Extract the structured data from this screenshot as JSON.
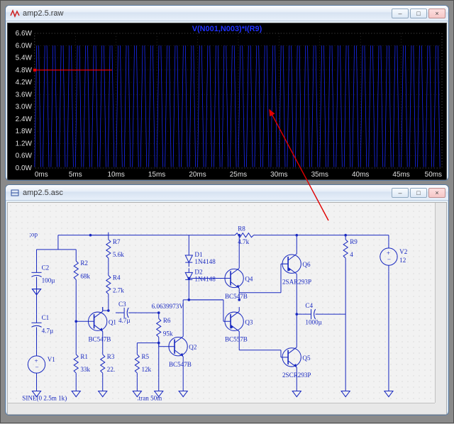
{
  "plot_window": {
    "title": "amp2.5.raw",
    "trace_label": "V(N001,N003)*I(R9)",
    "trace_label_color": "#2030ff",
    "y_axis": {
      "ticks": [
        "6.6W",
        "6.0W",
        "5.4W",
        "4.8W",
        "4.2W",
        "3.6W",
        "3.0W",
        "2.4W",
        "1.8W",
        "1.2W",
        "0.6W",
        "0.0W"
      ],
      "min": 0.0,
      "max": 6.6,
      "step": 0.6,
      "color": "#e0e0e0"
    },
    "x_axis": {
      "ticks": [
        "0ms",
        "5ms",
        "10ms",
        "15ms",
        "20ms",
        "25ms",
        "30ms",
        "35ms",
        "40ms",
        "45ms",
        "50ms"
      ],
      "min": 0,
      "max": 50,
      "step": 5,
      "color": "#e0e0e0"
    },
    "grid_color": "#404040",
    "background": "#000000",
    "waveform_color": "#1828f8",
    "cursor_line_color": "#ff0000",
    "cursor_y_value": 4.8,
    "cursor_x_end": 9.5,
    "waveform": {
      "peak": 6.0,
      "valley": 0.05,
      "frequency_khz": 1.0,
      "duration_ms": 50
    }
  },
  "schematic_window": {
    "title": "amp2.5.asc",
    "background": "#f2f2f2",
    "wire_color": "#1828c0",
    "text_color": "#1828c0",
    "value_color": "#1828c0",
    "dc_label": "6.0639973V",
    "directives": {
      "op": ";op",
      "sine": "SINE(0 2.5m 1k)",
      "tran": ".tran 50m"
    },
    "components": {
      "R1": {
        "value": "33k"
      },
      "R2": {
        "value": "68k"
      },
      "R3": {
        "value": "22."
      },
      "R4": {
        "value": "2.7k"
      },
      "R5": {
        "value": "12k"
      },
      "R6": {
        "value": "95k"
      },
      "R7": {
        "value": "5.6k"
      },
      "R8": {
        "value": "4.7k"
      },
      "R9": {
        "value": "4"
      },
      "C1": {
        "value": "4.7µ"
      },
      "C2": {
        "value": "100µ"
      },
      "C3": {
        "value": "4.7µ"
      },
      "C4": {
        "value": "1000µ"
      },
      "D1": {
        "value": "1N4148"
      },
      "D2": {
        "value": "1N4148"
      },
      "Q1": {
        "value": "BC547B"
      },
      "Q2": {
        "value": "BC547B"
      },
      "Q3": {
        "value": "BC557B"
      },
      "Q4": {
        "value": "BC547B"
      },
      "Q5": {
        "value": "2SCR293P"
      },
      "Q6": {
        "value": "2SAR293P"
      },
      "V1": {
        "value": ""
      },
      "V2": {
        "value": "12"
      }
    }
  },
  "minimize_glyph": "–",
  "maximize_glyph": "□",
  "close_glyph": "×"
}
